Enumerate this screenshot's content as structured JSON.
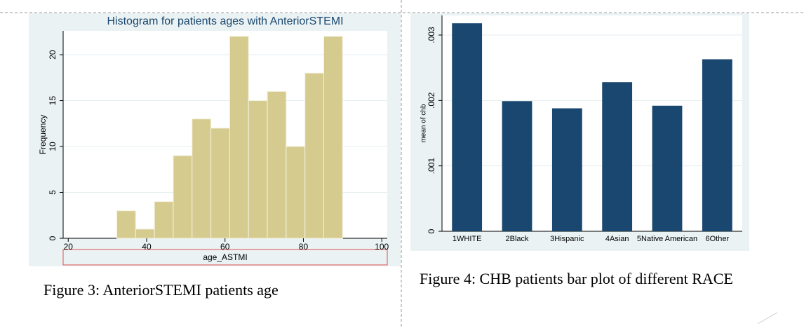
{
  "chart_data": [
    {
      "type": "histogram",
      "title": "Histogram for patients ages with AnteriorSTEMI",
      "x_label": "age_ASTMI",
      "y_label": "Frequency",
      "bins": [
        32.4,
        37.2,
        42.0,
        46.8,
        51.6,
        56.4,
        61.2,
        66.0,
        70.8,
        75.6,
        80.4,
        85.2,
        90.0
      ],
      "values": [
        3,
        1,
        4,
        9,
        13,
        12,
        22,
        15,
        16,
        10,
        18,
        22
      ],
      "color": "#d6cb8f",
      "xlim": [
        18.7,
        101.4
      ],
      "xticks": [
        20,
        40,
        60,
        80,
        100
      ],
      "ylim": [
        0,
        22.6
      ],
      "yticks": [
        0,
        5,
        10,
        15,
        20
      ],
      "grid": true
    },
    {
      "type": "bar",
      "y_label": "mean of chb",
      "categories": [
        "1WHITE",
        "2Black",
        "3Hispanic",
        "4Asian",
        "5Native American",
        "6Other"
      ],
      "values": [
        0.00318,
        0.00199,
        0.00188,
        0.00228,
        0.00192,
        0.00263
      ],
      "color": "#1a476f",
      "ylim": [
        0,
        0.0033
      ],
      "yticks": [
        0,
        {
          "value": 0.001,
          "label": ".001"
        },
        {
          "value": 0.002,
          "label": ".002"
        },
        {
          "value": 0.003,
          "label": ".003"
        }
      ],
      "grid": true
    }
  ],
  "captions": [
    "Figure 3: AnteriorSTEMI patients age",
    "Figure 4: CHB patients bar plot of different RACE"
  ]
}
